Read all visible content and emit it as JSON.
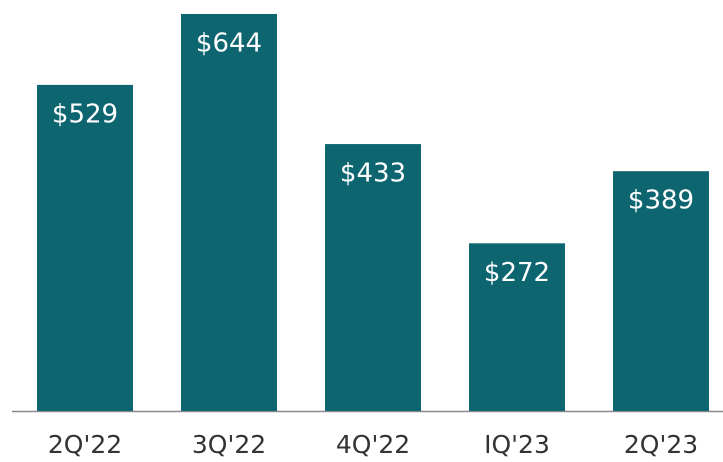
{
  "chart_data": {
    "type": "bar",
    "categories": [
      "2Q'22",
      "3Q'22",
      "4Q'22",
      "IQ'23",
      "2Q'23"
    ],
    "values": [
      529,
      644,
      433,
      272,
      389
    ],
    "value_labels": [
      "$529",
      "$644",
      "$433",
      "$272",
      "$389"
    ],
    "color": "#0d6570"
  }
}
